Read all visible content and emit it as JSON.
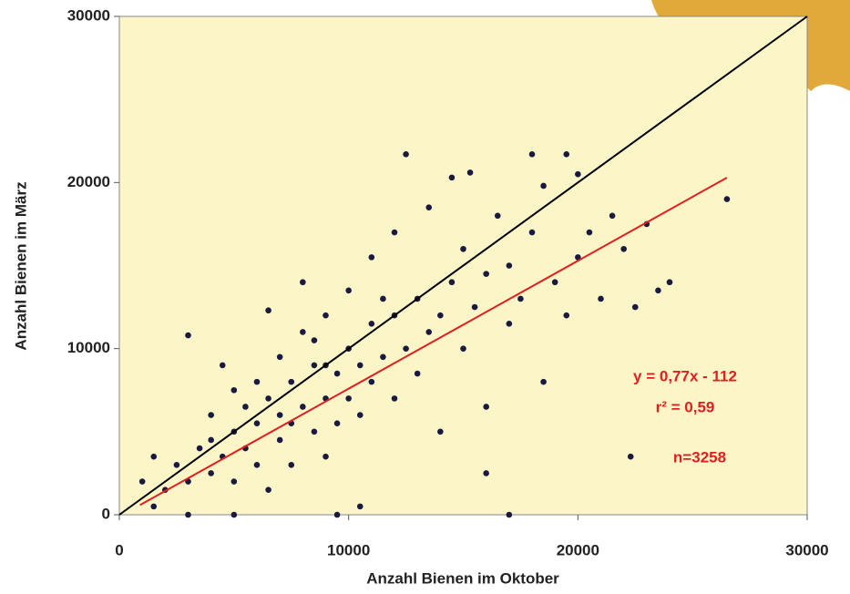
{
  "chart_data": {
    "type": "scatter",
    "xlabel": "Anzahl Bienen im Oktober",
    "ylabel": "Anzahl Bienen im März",
    "xlim": [
      0,
      30000
    ],
    "ylim": [
      0,
      30000
    ],
    "xticks": [
      0,
      10000,
      20000,
      30000
    ],
    "yticks": [
      0,
      10000,
      20000,
      30000
    ],
    "color": "#1a1a40",
    "x": [
      1000,
      1500,
      2000,
      2500,
      3000,
      3000,
      3500,
      4000,
      4000,
      4500,
      4500,
      5000,
      5000,
      5500,
      5500,
      6000,
      6000,
      6000,
      6500,
      6500,
      7000,
      7000,
      7000,
      7500,
      7500,
      8000,
      8000,
      8000,
      8500,
      8500,
      9000,
      9000,
      9000,
      9500,
      9500,
      10000,
      10000,
      10000,
      10500,
      10500,
      11000,
      11000,
      11000,
      11500,
      12000,
      12000,
      12000,
      12500,
      12500,
      13000,
      13000,
      13500,
      13500,
      14000,
      14000,
      14500,
      14500,
      15000,
      15000,
      15300,
      15500,
      16000,
      16000,
      16500,
      17000,
      17000,
      17500,
      18000,
      18000,
      18500,
      18500,
      19000,
      19500,
      19500,
      20000,
      20000,
      20500,
      21000,
      21500,
      22000,
      22300,
      22500,
      23000,
      23500,
      24000,
      26500,
      1500,
      3000,
      5000,
      9500,
      16000,
      17000,
      10500,
      6500,
      8500,
      7500,
      5000,
      4000,
      9000,
      11500
    ],
    "values": [
      2000,
      3500,
      1500,
      3000,
      2000,
      10800,
      4000,
      2500,
      6000,
      3500,
      9000,
      5000,
      2000,
      6500,
      4000,
      8000,
      3000,
      5500,
      7000,
      12300,
      4500,
      9500,
      6000,
      8000,
      3000,
      6500,
      11000,
      14000,
      5000,
      9000,
      7000,
      12000,
      3500,
      8500,
      5500,
      10000,
      7000,
      13500,
      6000,
      9000,
      11500,
      8000,
      15500,
      9500,
      12000,
      7000,
      17000,
      21700,
      10000,
      13000,
      8500,
      11000,
      18500,
      12000,
      5000,
      20300,
      14000,
      10000,
      16000,
      20600,
      12500,
      14500,
      6500,
      18000,
      11500,
      15000,
      13000,
      21700,
      17000,
      8000,
      19800,
      14000,
      21700,
      12000,
      20500,
      15500,
      17000,
      13000,
      18000,
      16000,
      3500,
      12500,
      17500,
      13500,
      14000,
      19000,
      500,
      0,
      0,
      0,
      2500,
      0,
      500,
      1500,
      10500,
      5500,
      7500,
      4500,
      9000,
      13000
    ],
    "reference_lines": [
      {
        "color": "#000000",
        "x": [
          0,
          30000
        ],
        "y": [
          0,
          30000
        ]
      },
      {
        "color": "#e02020",
        "x": [
          900,
          26500
        ],
        "y": [
          581,
          20293
        ]
      }
    ],
    "annotations": [
      "y = 0,77x - 112",
      "r² = 0,59",
      "n=3258"
    ]
  }
}
